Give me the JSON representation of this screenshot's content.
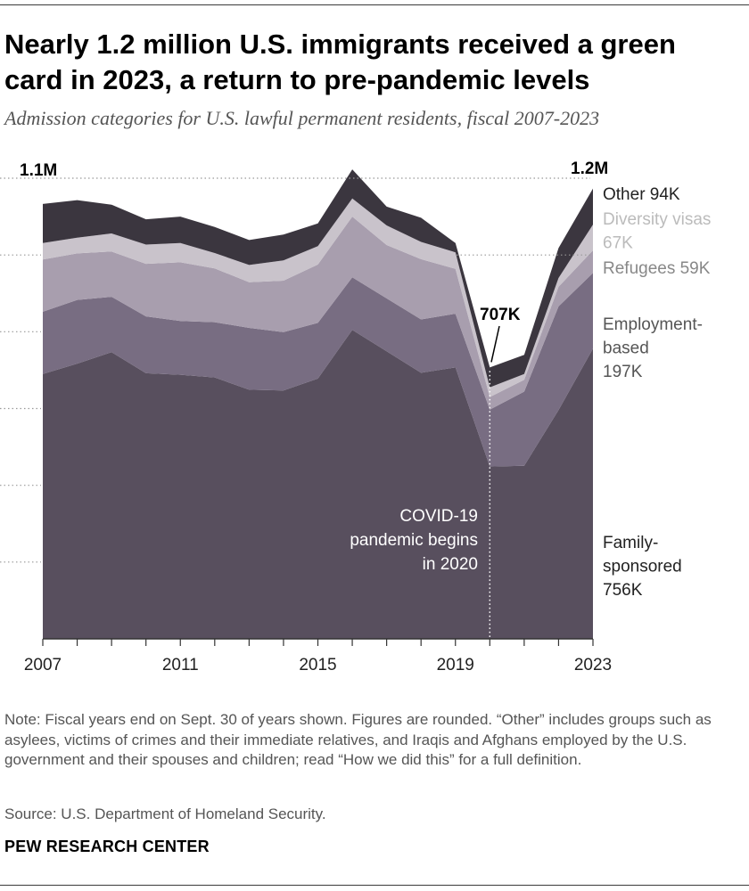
{
  "header": {
    "title": "Nearly 1.2 million U.S. immigrants received a green card in 2023, a return to pre-pandemic levels",
    "subtitle": "Admission categories for U.S. lawful permanent residents, fiscal 2007-2023"
  },
  "footer": {
    "note": "Note: Fiscal years end on Sept. 30 of years shown. Figures are rounded. “Other” includes groups such as asylees, victims of crimes and their immediate relatives, and Iraqis and Afghans employed by the U.S. government and their spouses and children; read “How we did this” for a full definition.",
    "source": "Source: U.S. Department of Homeland Security.",
    "brand": "PEW RESEARCH CENTER"
  },
  "chart_data": {
    "type": "area",
    "stacked": true,
    "title": "Nearly 1.2 million U.S. immigrants received a green card in 2023, a return to pre-pandemic levels",
    "subtitle": "Admission categories for U.S. lawful permanent residents, fiscal 2007-2023",
    "xlabel": "",
    "ylabel": "",
    "x": [
      2007,
      2008,
      2009,
      2010,
      2011,
      2012,
      2013,
      2014,
      2015,
      2016,
      2017,
      2018,
      2019,
      2020,
      2021,
      2022,
      2023
    ],
    "xticks": [
      "2007",
      "2011",
      "2015",
      "2019",
      "2023"
    ],
    "ylim": [
      0,
      1200000
    ],
    "grid_values": [
      200000,
      400000,
      600000,
      800000,
      1000000,
      1200000
    ],
    "series": [
      {
        "name": "Family-sponsored",
        "color": "#584f5e",
        "end_label": "Family-\nsponsored\n756K",
        "values": [
          690000,
          717000,
          747000,
          692000,
          688000,
          681000,
          649000,
          647000,
          678000,
          805000,
          749000,
          693000,
          707000,
          449000,
          451000,
          596000,
          756000
        ]
      },
      {
        "name": "Employment-based",
        "color": "#786d82",
        "end_label": "Employment-\nbased\n197K",
        "values": [
          162000,
          166000,
          144000,
          148000,
          140000,
          144000,
          161000,
          152000,
          145000,
          137000,
          138000,
          139000,
          140000,
          148000,
          193000,
          270000,
          197000
        ]
      },
      {
        "name": "Refugees",
        "color": "#a89eae",
        "end_label": "Refugees 59K",
        "values": [
          136000,
          121000,
          118000,
          137000,
          153000,
          140000,
          119000,
          134000,
          152000,
          158000,
          139000,
          157000,
          117000,
          33000,
          31000,
          51000,
          59000
        ]
      },
      {
        "name": "Diversity visas",
        "color": "#c9c3cb",
        "end_label": "Diversity visas\n67K",
        "values": [
          43000,
          41000,
          47000,
          50000,
          50000,
          40000,
          45000,
          53000,
          48000,
          47000,
          51000,
          45000,
          43000,
          25000,
          15000,
          23000,
          67000
        ]
      },
      {
        "name": "Other",
        "color": "#3b363f",
        "end_label": "Other 94K",
        "values": [
          102000,
          98000,
          75000,
          66000,
          69000,
          68000,
          65000,
          67000,
          59000,
          76000,
          49000,
          63000,
          24000,
          52000,
          50000,
          78000,
          94000
        ]
      }
    ],
    "annotations": [
      {
        "year": 2007,
        "text": "1.1M"
      },
      {
        "year": 2020,
        "text": "707K"
      },
      {
        "year": 2023,
        "text": "1.2M"
      },
      {
        "year": 2020,
        "text": "COVID-19\npandemic begins\nin 2020"
      }
    ],
    "grid": true,
    "legend": "inline-right"
  }
}
